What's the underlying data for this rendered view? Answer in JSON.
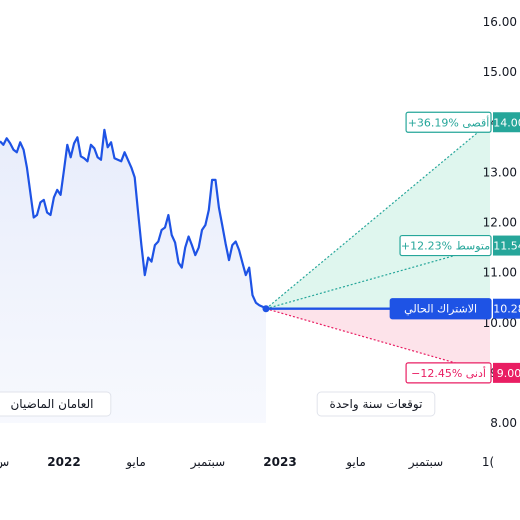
{
  "chart_data": {
    "type": "line",
    "y_axis": {
      "ticks": [
        "16.00",
        "15.00",
        "14.00",
        "13.00",
        "12.00",
        "11.00",
        "10.00",
        "9.00",
        "8.00"
      ],
      "ylim": [
        8,
        16
      ],
      "position": "right"
    },
    "x_axis": {
      "ticks": [
        {
          "label": "س",
          "bold": false
        },
        {
          "label": "2022",
          "bold": true
        },
        {
          "label": "مايو",
          "bold": false
        },
        {
          "label": "سبتمبر",
          "bold": false
        },
        {
          "label": "2023",
          "bold": true
        },
        {
          "label": "مايو",
          "bold": false
        },
        {
          "label": "سبتمبر",
          "bold": false
        },
        {
          "label": "1(",
          "bold": false
        }
      ]
    },
    "history_series": {
      "color": "#1e53e5",
      "values": [
        13.62,
        13.55,
        13.68,
        13.58,
        13.45,
        13.4,
        13.6,
        13.45,
        13.1,
        12.6,
        12.1,
        12.15,
        12.4,
        12.45,
        12.2,
        12.15,
        12.5,
        12.65,
        12.55,
        13.05,
        13.55,
        13.3,
        13.58,
        13.7,
        13.32,
        13.28,
        13.22,
        13.55,
        13.48,
        13.3,
        13.25,
        13.85,
        13.5,
        13.6,
        13.28,
        13.25,
        13.22,
        13.4,
        13.25,
        13.1,
        12.9,
        12.2,
        11.55,
        10.95,
        11.3,
        11.22,
        11.55,
        11.62,
        11.85,
        11.9,
        12.15,
        11.75,
        11.6,
        11.2,
        11.1,
        11.5,
        11.72,
        11.55,
        11.35,
        11.5,
        11.85,
        11.95,
        12.25,
        12.85,
        12.85,
        12.3,
        11.95,
        11.58,
        11.25,
        11.55,
        11.62,
        11.45,
        11.2,
        10.95,
        11.1,
        10.55,
        10.4,
        10.35,
        10.32,
        10.28
      ]
    },
    "current": {
      "value": 10.28,
      "price_label": "10.28",
      "label": "الاشتراك الحالي"
    },
    "forecast": {
      "high": {
        "value": 14.0,
        "price_label": "14.00",
        "label": "+36.19% أقصى",
        "color": "#26a69a"
      },
      "average": {
        "value": 11.54,
        "price_label": "11.54",
        "label": "+12.23% متوسط",
        "color": "#26a69a"
      },
      "low": {
        "value": 9.0,
        "price_label": "9.00",
        "label": "−12.45% أدنى",
        "color": "#e91e63"
      }
    },
    "period_labels": {
      "past": "العامان الماضيان",
      "future": "توقعات سنة واحدة"
    },
    "colors": {
      "history_fill": "#e8edfb",
      "forecast_up_fill": "#dff6ee",
      "forecast_down_fill": "#fde3ea",
      "current_badge": "#1e53e5"
    }
  }
}
